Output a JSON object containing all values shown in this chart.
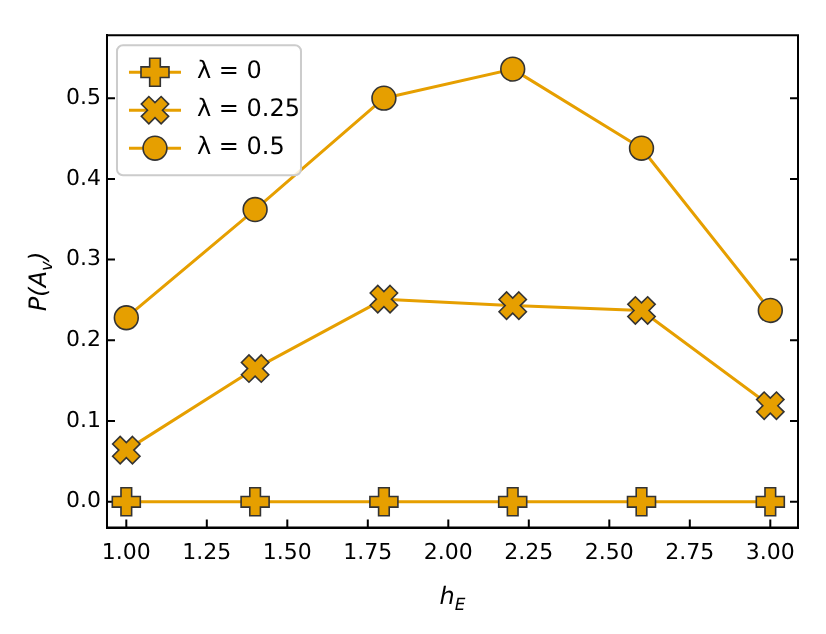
{
  "chart_data": {
    "type": "line",
    "xlabel": "h$_{E}$",
    "ylabel": "P(A$_{v}$)",
    "x": [
      1.0,
      1.4,
      1.8,
      2.2,
      2.6,
      3.0
    ],
    "series": [
      {
        "name": "λ = 0",
        "color": "#e69f00",
        "marker": "plus",
        "values": [
          0,
          0,
          0,
          0,
          0,
          0
        ]
      },
      {
        "name": "λ = 0.25",
        "color": "#e69f00",
        "marker": "x",
        "values": [
          0.064,
          0.165,
          0.251,
          0.243,
          0.237,
          0.119
        ]
      },
      {
        "name": "λ = 0.5",
        "color": "#e69f00",
        "marker": "circle",
        "values": [
          0.228,
          0.362,
          0.5,
          0.536,
          0.438,
          0.237
        ]
      }
    ],
    "xlim": [
      0.94,
      3.086
    ],
    "xticks": [
      {
        "value": 1,
        "label": "1.00"
      },
      1.25,
      {
        "value": 1.5,
        "label": "1.50"
      },
      1.75,
      {
        "value": 2,
        "label": "2.00"
      },
      2.25,
      {
        "value": 2.5,
        "label": "2.50"
      },
      2.75,
      {
        "value": 3,
        "label": "3.00"
      }
    ],
    "ylim": [
      -0.032,
      0.578
    ],
    "yticks": [
      {
        "value": 0,
        "label": "0.0"
      },
      0.1,
      0.2,
      0.3,
      0.4,
      0.5
    ],
    "grid": false,
    "legend": "top left",
    "line_style": "solid"
  }
}
